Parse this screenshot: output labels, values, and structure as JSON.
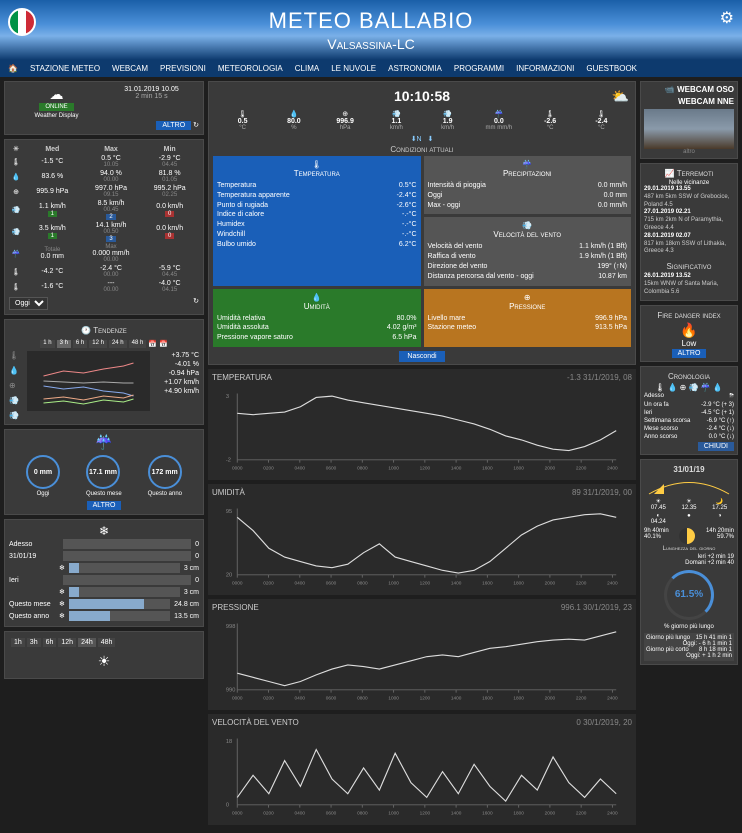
{
  "header": {
    "title": "METEO BALLABIO",
    "subtitle": "Valsassina-LC"
  },
  "nav": [
    "STAZIONE METEO",
    "WEBCAM",
    "PREVISIONI",
    "METEOROLOGIA",
    "CLIMA",
    "LE NUVOLE",
    "ASTRONOMIA",
    "PROGRAMMI",
    "INFORMAZIONI",
    "GUESTBOOK"
  ],
  "station": {
    "status": "ONLINE",
    "name": "Weather Display",
    "time": "31.01.2019 10.05",
    "age": "2 min 15 s",
    "altro": "ALTRO"
  },
  "clock": "10:10:58",
  "current": [
    {
      "ico": "🌡",
      "val": "0.5",
      "unit": "°C"
    },
    {
      "ico": "💧",
      "val": "80.0",
      "unit": "%"
    },
    {
      "ico": "⊕",
      "val": "996.9",
      "unit": "hPa"
    },
    {
      "ico": "💨",
      "val": "1.1",
      "unit": "km/h"
    },
    {
      "ico": "💨",
      "val": "1.9",
      "unit": "km/h"
    },
    {
      "ico": "☔",
      "val": "0.0",
      "unit": "mm mm/h"
    },
    {
      "ico": "🌡",
      "val": "-2.6",
      "unit": "°C"
    },
    {
      "ico": "🌡",
      "val": "-2.4",
      "unit": "°C"
    }
  ],
  "cond_title": "Condizioni attuali",
  "temp_box": {
    "title": "Temperatura",
    "rows": [
      [
        "Temperatura",
        "0.5°C"
      ],
      [
        "Temperatura apparente",
        "-2.4°C"
      ],
      [
        "Punto di rugiada",
        "-2.6°C"
      ],
      [
        "Indice di calore",
        "-.-°C"
      ],
      [
        "Humidex",
        "-.-°C"
      ],
      [
        "Windchill",
        "-.-°C"
      ],
      [
        "Bulbo umido",
        "6.2°C"
      ]
    ]
  },
  "prec_box": {
    "title": "Precipitazioni",
    "rows": [
      [
        "Intensità di pioggia",
        "0.0 mm/h"
      ],
      [
        "Oggi",
        "0.0 mm"
      ],
      [
        "Max - oggi",
        "0.0 mm/h"
      ]
    ]
  },
  "wind_box": {
    "title": "Velocità del vento",
    "rows": [
      [
        "Velocità del vento",
        "1.1 km/h (1 Bft)"
      ],
      [
        "Raffica di vento",
        "1.9 km/h (1 Bft)"
      ],
      [
        "Direzione del vento",
        "199° (↑N)"
      ],
      [
        "Distanza percorsa dal vento - oggi",
        "10.87 km"
      ]
    ]
  },
  "hum_box": {
    "title": "Umidità",
    "rows": [
      [
        "Umidità relativa",
        "80.0%"
      ],
      [
        "Umidità assoluta",
        "4.02 g/m³"
      ],
      [
        "Pressione vapore saturo",
        "6.5 hPa"
      ]
    ]
  },
  "press_box": {
    "title": "Pressione",
    "rows": [
      [
        "Livello mare",
        "996.9 hPa"
      ],
      [
        "Stazione meteo",
        "913.5 hPa"
      ]
    ]
  },
  "nascondi": "Nascondi",
  "stats": {
    "header": [
      "Oggi",
      "Med",
      "Max",
      "Min"
    ],
    "rows": [
      {
        "ico": "🌡",
        "med": "-1.5 °C",
        "max": "0.5 °C",
        "maxt": "10.05",
        "min": "-2.9 °C",
        "mint": "04.45"
      },
      {
        "ico": "💧",
        "med": "83.6 %",
        "max": "94.0 %",
        "maxt": "00.00",
        "min": "81.8 %",
        "mint": "01.05"
      },
      {
        "ico": "⊕",
        "med": "995.9 hPa",
        "max": "997.0 hPa",
        "maxt": "09.15",
        "min": "995.2 hPa",
        "mint": "02.25"
      },
      {
        "ico": "💨",
        "med": "1.1 km/h",
        "medB": "1",
        "max": "8.5 km/h",
        "maxB": "2",
        "maxt": "00.45",
        "min": "0.0 km/h",
        "minB": "0"
      },
      {
        "ico": "💨",
        "med": "3.5 km/h",
        "medB": "1",
        "max": "14.1 km/h",
        "maxB": "3",
        "maxt": "00.50",
        "min": "0.0 km/h",
        "minB": "0"
      },
      {
        "ico": "☔",
        "totL": "Totale",
        "tot": "0.0 mm",
        "maxL": "Max",
        "max": "0.000 mm/h",
        "maxt": "00.00"
      },
      {
        "ico": "🌡",
        "med": "-4.2 °C",
        "max": "-2.4 °C",
        "maxt": "00.00",
        "min": "-5.9 °C",
        "mint": "04.45"
      },
      {
        "ico": "🌡",
        "med": "-1.6 °C",
        "max": "---",
        "maxt": "00.00",
        "min": "-4.0 °C",
        "mint": "04.15"
      }
    ],
    "select": "Oggi"
  },
  "trends": {
    "title": "Tendenze",
    "btns": [
      "1 h",
      "3 h",
      "6 h",
      "12 h",
      "24 h",
      "48 h",
      "7",
      "M"
    ],
    "vals": [
      "+3.75 °C",
      "-4.01 %",
      "-0.94 hPa",
      "+1.07 km/h",
      "+4.90 km/h"
    ]
  },
  "rain": {
    "vals": [
      "0 mm",
      "17.1 mm",
      "172 mm"
    ],
    "lbls": [
      "Oggi",
      "Questo mese",
      "Questo anno"
    ],
    "altro": "ALTRO"
  },
  "snow": {
    "rows": [
      [
        "Adesso",
        "",
        "0"
      ],
      [
        "31/01/19",
        "",
        "0"
      ],
      [
        "",
        "❄",
        "3 cm"
      ],
      [
        "Ieri",
        "",
        "0"
      ],
      [
        "",
        "❄",
        "3 cm"
      ],
      [
        "Questo mese",
        "❄",
        "24.8 cm"
      ],
      [
        "Questo anno",
        "❄",
        "13.5 cm"
      ]
    ]
  },
  "forecast_btns": [
    "1h",
    "3h",
    "6h",
    "12h",
    "24h",
    "48h"
  ],
  "charts": [
    {
      "title": "TEMPERATURA",
      "right": "-1.3   31/1/2019, 08",
      "data": [
        1.5,
        1.4,
        1.5,
        1.6,
        2.0,
        2.7,
        2.8,
        2.5,
        2.3,
        2.1,
        1.9,
        1.7,
        1.5,
        1.3,
        1.0,
        0.7,
        0.3,
        -0.2,
        -0.5,
        -0.9,
        -1.2,
        -1.3,
        -1.0,
        -0.5,
        0.2
      ],
      "ylim": [
        -2,
        3
      ],
      "color": "#ddd"
    },
    {
      "title": "UMIDITÀ",
      "right": "89   31/1/2019, 00",
      "data": [
        85,
        70,
        50,
        40,
        35,
        30,
        28,
        32,
        45,
        55,
        40,
        35,
        30,
        25,
        22,
        25,
        35,
        50,
        65,
        75,
        82,
        85,
        88,
        89,
        85
      ],
      "ylim": [
        20,
        95
      ],
      "color": "#ddd"
    },
    {
      "title": "PRESSIONE",
      "right": "996.1   30/1/2019, 23",
      "data": [
        992,
        991.5,
        991,
        990.5,
        991,
        991.8,
        992.5,
        993,
        992.8,
        992.5,
        993,
        993.5,
        994,
        994.2,
        994,
        994.5,
        995,
        995.2,
        995.5,
        995.8,
        996,
        996.1,
        996,
        996.5,
        997
      ],
      "ylim": [
        990,
        998
      ],
      "color": "#ddd"
    },
    {
      "title": "VELOCITÀ DEL VENTO",
      "right": "0   30/1/2019, 20",
      "data": [
        2,
        8,
        3,
        12,
        5,
        15,
        7,
        3,
        10,
        4,
        14,
        6,
        2,
        9,
        3,
        11,
        5,
        1,
        8,
        4,
        13,
        6,
        2,
        7,
        3
      ],
      "ylim": [
        0,
        18
      ],
      "color": "#ddd",
      "fill": false
    }
  ],
  "webcam": {
    "title1": "WEBCAM OSO",
    "title2": "WEBCAM NNE",
    "altro": "altro"
  },
  "quakes": {
    "title": "Terremoti",
    "sub": "Nelle vicinanze",
    "items": [
      "29.01.2019 13.55",
      "487 km 5km SSW of Grebocice, Poland 4.5",
      "27.01.2019 02.21",
      "715 km 2km N of Paramythia, Greece 4.4",
      "28.01.2019 02.07",
      "817 km 18km SSW of Lithakia, Greece 4.3"
    ],
    "sig": "Significativo",
    "sigitems": [
      "26.01.2019 13.52",
      "15km WNW of Santa Maria, Colombia 5.6"
    ]
  },
  "fire": {
    "title": "Fire danger index",
    "level": "Low",
    "altro": "ALTRO"
  },
  "chron": {
    "title": "Cronologia",
    "rows": [
      [
        "Adesso",
        "",
        "⛈"
      ],
      [
        "Un ora fa",
        "-2.9 °C (+ 3)",
        ""
      ],
      [
        "Ieri",
        "-4.5 °C (+ 1)",
        ""
      ],
      [
        "Settimana scorsa",
        "-6.9 °C (↑)",
        ""
      ],
      [
        "Mese scorso",
        "-2.4 °C (↓)",
        ""
      ],
      [
        "Anno scorso",
        "0.0 °C (↓)",
        ""
      ]
    ],
    "chiudi": "CHIUDI"
  },
  "today": {
    "date": "31/01/19",
    "sun": [
      [
        "☀",
        "07.45"
      ],
      [
        "☀",
        "12.35"
      ],
      [
        "🌙",
        "17.25"
      ],
      [
        "◐",
        "04.24"
      ],
      [
        "●",
        ""
      ],
      [
        "◑",
        ""
      ]
    ],
    "moon": [
      [
        "9h 40min",
        ""
      ],
      [
        "40.1%",
        ""
      ],
      [
        "",
        "14h 20min"
      ],
      [
        "",
        "59.7%"
      ]
    ],
    "daylen": {
      "title": "Lunghezza del giorno",
      "ieri": "Ieri   +2 min 19",
      "domani": "Domani   +2 min 40",
      "pct": "61.5%",
      "note": "% giorno più lungo"
    },
    "bottom": [
      [
        "Giorno più lungo",
        "15 h 41 min 1"
      ],
      [
        "",
        "Oggi: - 6 h 1 min 1"
      ],
      [
        "Giorno più corto",
        "8 h 18 min 1"
      ],
      [
        "",
        "Oggi: + 1 h 2 min"
      ]
    ]
  }
}
